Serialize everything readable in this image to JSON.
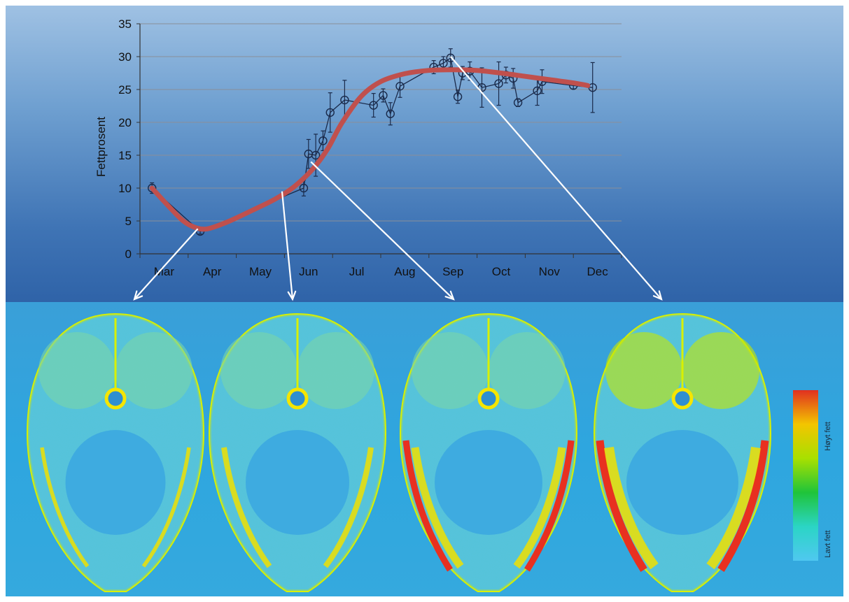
{
  "chart_data": {
    "type": "line",
    "ylabel": "Fettprosent",
    "xlabel": "",
    "ylim": [
      0,
      35
    ],
    "yticks": [
      "0",
      "5",
      "10",
      "15",
      "20",
      "25",
      "30",
      "35"
    ],
    "xlim": [
      0,
      10
    ],
    "xtick_labels": [
      "Mar",
      "Apr",
      "May",
      "Jun",
      "Jul",
      "Aug",
      "Sep",
      "Oct",
      "Nov",
      "Dec"
    ],
    "grid": true,
    "colors": {
      "observed": "#1a2a4a",
      "fitted": "#c0504d",
      "arrows": "#ffffff"
    },
    "series": [
      {
        "type": "line-markers",
        "points": [
          {
            "x": 0.25,
            "y": 10.0,
            "err": 0.8
          },
          {
            "x": 1.25,
            "y": 3.4,
            "err": 0.4
          },
          {
            "x": 3.4,
            "y": 10.0,
            "err": 1.2
          },
          {
            "x": 3.5,
            "y": 15.2,
            "err": 2.2
          },
          {
            "x": 3.65,
            "y": 15.0,
            "err": 3.2
          },
          {
            "x": 3.8,
            "y": 17.2,
            "err": 1.5
          },
          {
            "x": 3.95,
            "y": 21.5,
            "err": 3.0
          },
          {
            "x": 4.25,
            "y": 23.4,
            "err": 3.0
          },
          {
            "x": 4.85,
            "y": 22.6,
            "err": 1.8
          },
          {
            "x": 5.05,
            "y": 24.1,
            "err": 1.0
          },
          {
            "x": 5.2,
            "y": 21.3,
            "err": 1.7
          },
          {
            "x": 5.4,
            "y": 25.5,
            "err": 1.7
          },
          {
            "x": 6.1,
            "y": 28.4,
            "err": 1.0
          },
          {
            "x": 6.3,
            "y": 29.0,
            "err": 1.0
          },
          {
            "x": 6.45,
            "y": 29.8,
            "err": 1.4
          },
          {
            "x": 6.6,
            "y": 23.9,
            "err": 1.0
          },
          {
            "x": 6.7,
            "y": 27.5,
            "err": 1.0
          },
          {
            "x": 6.85,
            "y": 27.8,
            "err": 1.4
          },
          {
            "x": 7.1,
            "y": 25.3,
            "err": 3.0
          },
          {
            "x": 7.45,
            "y": 25.9,
            "err": 3.3
          },
          {
            "x": 7.6,
            "y": 27.2,
            "err": 1.2
          },
          {
            "x": 7.75,
            "y": 26.7,
            "err": 1.5
          },
          {
            "x": 7.85,
            "y": 23.0,
            "err": 0.6
          },
          {
            "x": 8.25,
            "y": 24.8,
            "err": 2.2
          },
          {
            "x": 8.35,
            "y": 26.2,
            "err": 1.8
          },
          {
            "x": 9.0,
            "y": 25.6,
            "err": 0.5
          },
          {
            "x": 9.4,
            "y": 25.3,
            "err": 3.8
          }
        ]
      },
      {
        "type": "fitted-curve",
        "points": [
          {
            "x": 0.25,
            "y": 10.0
          },
          {
            "x": 0.6,
            "y": 7.2
          },
          {
            "x": 0.9,
            "y": 5.0
          },
          {
            "x": 1.15,
            "y": 4.0
          },
          {
            "x": 1.4,
            "y": 3.8
          },
          {
            "x": 1.8,
            "y": 4.8
          },
          {
            "x": 2.3,
            "y": 6.5
          },
          {
            "x": 2.8,
            "y": 8.3
          },
          {
            "x": 3.2,
            "y": 10.2
          },
          {
            "x": 3.6,
            "y": 13.0
          },
          {
            "x": 3.9,
            "y": 16.0
          },
          {
            "x": 4.2,
            "y": 20.0
          },
          {
            "x": 4.6,
            "y": 24.0
          },
          {
            "x": 5.0,
            "y": 26.2
          },
          {
            "x": 5.5,
            "y": 27.4
          },
          {
            "x": 6.0,
            "y": 27.9
          },
          {
            "x": 6.5,
            "y": 28.0
          },
          {
            "x": 7.0,
            "y": 27.9
          },
          {
            "x": 7.5,
            "y": 27.5
          },
          {
            "x": 8.0,
            "y": 27.0
          },
          {
            "x": 8.5,
            "y": 26.5
          },
          {
            "x": 9.0,
            "y": 26.0
          },
          {
            "x": 9.3,
            "y": 25.6
          }
        ]
      }
    ],
    "arrows": [
      {
        "from": {
          "x": 1.2,
          "y": 3.8
        },
        "to_image": 0
      },
      {
        "from": {
          "x": 2.95,
          "y": 9.5
        },
        "to_image": 1
      },
      {
        "from": {
          "x": 3.55,
          "y": 14.0
        },
        "to_image": 2
      },
      {
        "from": {
          "x": 6.45,
          "y": 30.0
        },
        "to_image": 3
      }
    ]
  },
  "scans": {
    "colorbar_colors": [
      "#e03020",
      "#f3c500",
      "#a8e000",
      "#1fc43a",
      "#2bd5c5",
      "#4fc8f0"
    ],
    "colorbar_high_label": "Høyt fett",
    "colorbar_low_label": "Lavt fett",
    "intensity_levels": [
      0.15,
      0.4,
      0.7,
      1.0
    ]
  }
}
